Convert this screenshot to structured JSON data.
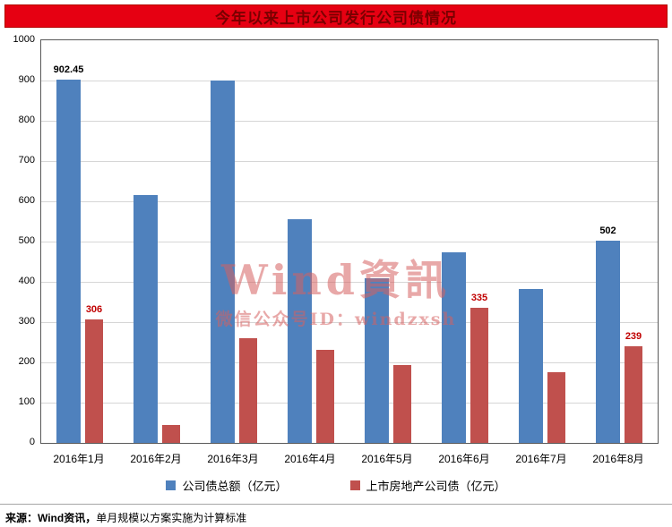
{
  "title": "今年以来上市公司发行公司债情况",
  "watermark": {
    "line1": "Wind資訊",
    "line2": "微信公众号ID：windzxsh"
  },
  "footer": {
    "source_label": "来源：Wind资讯，",
    "note": "单月规模以方案实施为计算标准"
  },
  "colors": {
    "title_bg": "#e60012",
    "title_text": "#7a0000",
    "series_blue": "#4f81bd",
    "series_red": "#c0504d",
    "gridline": "#d6d6d6",
    "watermark": "#d56060"
  },
  "chart_data": {
    "type": "bar",
    "categories": [
      "2016年1月",
      "2016年2月",
      "2016年3月",
      "2016年4月",
      "2016年5月",
      "2016年6月",
      "2016年7月",
      "2016年8月"
    ],
    "series": [
      {
        "name": "公司债总额（亿元）",
        "color": "#4f81bd",
        "label_color": "#000000",
        "values": [
          902.45,
          615,
          900,
          555,
          408,
          473,
          383,
          502
        ],
        "labels": {
          "0": "902.45",
          "7": "502"
        }
      },
      {
        "name": "上市房地产公司债（亿元）",
        "color": "#c0504d",
        "label_color": "#c00000",
        "values": [
          306,
          45,
          260,
          232,
          193,
          335,
          175,
          239
        ],
        "labels": {
          "0": "306",
          "5": "335",
          "7": "239"
        }
      }
    ],
    "ylim": [
      0,
      1000
    ],
    "yticks": [
      0,
      100,
      200,
      300,
      400,
      500,
      600,
      700,
      800,
      900,
      1000
    ],
    "grid": true,
    "legend_position": "bottom"
  }
}
